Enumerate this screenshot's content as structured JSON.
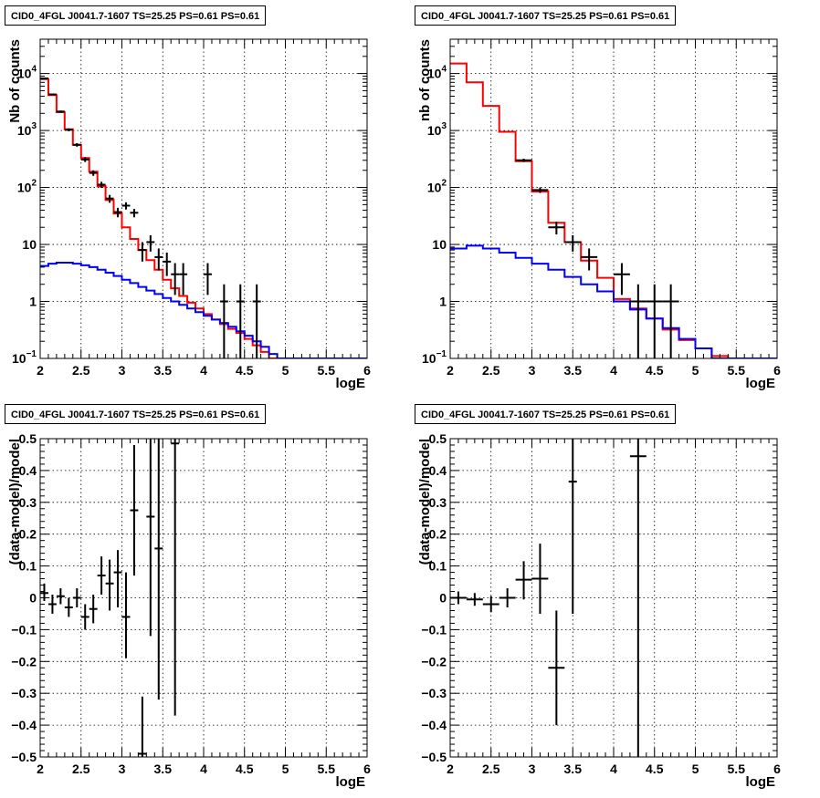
{
  "chart_data": [
    {
      "id": "tl",
      "type": "line",
      "title": "CID0_4FGL J0041.7-1607 TS=25.25 PS=0.61 PS=0.61",
      "xlabel": "logE",
      "ylabel": "Nb of counts",
      "xlim": [
        2,
        6
      ],
      "ylim": [
        0.1,
        40000
      ],
      "yscale": "log",
      "grid": true,
      "x_ticks": [
        "2",
        "2.5",
        "3",
        "3.5",
        "4",
        "4.5",
        "5",
        "5.5",
        "6"
      ],
      "y_ticks": [
        {
          "value": 0.1,
          "mant": "10",
          "exp": "−1"
        },
        {
          "value": 1,
          "mant": "1",
          "exp": ""
        },
        {
          "value": 10,
          "mant": "10",
          "exp": ""
        },
        {
          "value": 100,
          "mant": "10",
          "exp": "2"
        },
        {
          "value": 1000,
          "mant": "10",
          "exp": "3"
        },
        {
          "value": 10000,
          "mant": "10",
          "exp": "4"
        }
      ],
      "bin_edges": [
        2.0,
        2.1,
        2.2,
        2.3,
        2.4,
        2.5,
        2.6,
        2.7,
        2.8,
        2.9,
        3.0,
        3.1,
        3.2,
        3.3,
        3.4,
        3.5,
        3.6,
        3.7,
        3.8,
        3.9,
        4.0,
        4.1,
        4.2,
        4.3,
        4.4,
        4.5,
        4.6,
        4.7,
        4.8,
        4.9,
        5.0,
        5.1,
        5.2,
        5.3,
        5.4,
        5.5,
        5.6,
        5.7,
        5.8,
        5.9,
        6.0
      ],
      "series": [
        {
          "name": "",
          "color": "#ff0000",
          "kind": "step",
          "values": [
            8000,
            4200,
            2100,
            1050,
            560,
            330,
            190,
            105,
            60,
            35,
            20,
            12.5,
            8,
            5.3,
            3.6,
            2.4,
            1.7,
            1.25,
            0.95,
            0.75,
            0.6,
            0.48,
            0.4,
            0.33,
            0.28,
            0.22,
            0.17,
            0.13,
            0.1,
            0.09,
            0.09,
            0.09,
            0.09,
            0.09,
            0.09,
            0.09,
            0.09,
            0.09,
            0.09,
            0.09
          ]
        },
        {
          "name": "",
          "color": "#0000ff",
          "kind": "step",
          "values": [
            4.2,
            4.6,
            4.8,
            4.8,
            4.6,
            4.3,
            4.0,
            3.6,
            3.2,
            2.8,
            2.4,
            2.1,
            1.8,
            1.55,
            1.35,
            1.15,
            1.0,
            0.87,
            0.75,
            0.65,
            0.56,
            0.48,
            0.42,
            0.36,
            0.3,
            0.25,
            0.2,
            0.16,
            0.12,
            0.1,
            0.09,
            0.09,
            0.09,
            0.09,
            0.09,
            0.09,
            0.09,
            0.09,
            0.09,
            0.09
          ]
        },
        {
          "name": "",
          "color": "#000000",
          "kind": "points",
          "points": [
            {
              "x": 2.05,
              "xerr": 0.05,
              "y": 8200,
              "ylo": 8020,
              "yhi": 8380
            },
            {
              "x": 2.15,
              "xerr": 0.05,
              "y": 4300,
              "ylo": 4170,
              "yhi": 4430
            },
            {
              "x": 2.25,
              "xerr": 0.05,
              "y": 2150,
              "ylo": 2060,
              "yhi": 2240
            },
            {
              "x": 2.35,
              "xerr": 0.05,
              "y": 1030,
              "ylo": 970,
              "yhi": 1090
            },
            {
              "x": 2.45,
              "xerr": 0.05,
              "y": 560,
              "ylo": 520,
              "yhi": 600
            },
            {
              "x": 2.55,
              "xerr": 0.05,
              "y": 310,
              "ylo": 280,
              "yhi": 340
            },
            {
              "x": 2.65,
              "xerr": 0.05,
              "y": 180,
              "ylo": 160,
              "yhi": 200
            },
            {
              "x": 2.75,
              "xerr": 0.05,
              "y": 112,
              "ylo": 98,
              "yhi": 126
            },
            {
              "x": 2.85,
              "xerr": 0.05,
              "y": 64,
              "ylo": 54,
              "yhi": 74
            },
            {
              "x": 2.95,
              "xerr": 0.05,
              "y": 37,
              "ylo": 30,
              "yhi": 44
            },
            {
              "x": 3.05,
              "xerr": 0.05,
              "y": 48,
              "ylo": 41,
              "yhi": 55
            },
            {
              "x": 3.15,
              "xerr": 0.05,
              "y": 36,
              "ylo": 30,
              "yhi": 42
            },
            {
              "x": 3.25,
              "xerr": 0.05,
              "y": 8,
              "ylo": 5,
              "yhi": 11
            },
            {
              "x": 3.35,
              "xerr": 0.05,
              "y": 11,
              "ylo": 7.5,
              "yhi": 14.5
            },
            {
              "x": 3.45,
              "xerr": 0.05,
              "y": 6,
              "ylo": 3.5,
              "yhi": 8.5
            },
            {
              "x": 3.55,
              "xerr": 0.05,
              "y": 5,
              "ylo": 2.8,
              "yhi": 7.2
            },
            {
              "x": 3.65,
              "xerr": 0.05,
              "y": 3,
              "ylo": 1.3,
              "yhi": 4.7
            },
            {
              "x": 3.75,
              "xerr": 0.05,
              "y": 3,
              "ylo": 1.3,
              "yhi": 4.7
            },
            {
              "x": 4.05,
              "xerr": 0.05,
              "y": 3,
              "ylo": 1.3,
              "yhi": 4.7
            },
            {
              "x": 4.25,
              "xerr": 0.05,
              "y": 1,
              "ylo": 0.1,
              "yhi": 2
            },
            {
              "x": 4.45,
              "xerr": 0.05,
              "y": 1,
              "ylo": 0.1,
              "yhi": 2
            },
            {
              "x": 4.65,
              "xerr": 0.05,
              "y": 1,
              "ylo": 0.1,
              "yhi": 2
            }
          ]
        }
      ]
    },
    {
      "id": "tr",
      "type": "line",
      "title": "CID0_4FGL J0041.7-1607 TS=25.25 PS=0.61 PS=0.61",
      "xlabel": "logE",
      "ylabel": "nb of counts",
      "xlim": [
        2,
        6
      ],
      "ylim": [
        0.1,
        40000
      ],
      "yscale": "log",
      "grid": true,
      "x_ticks": [
        "2",
        "2.5",
        "3",
        "3.5",
        "4",
        "4.5",
        "5",
        "5.5",
        "6"
      ],
      "y_ticks": [
        {
          "value": 0.1,
          "mant": "10",
          "exp": "−1"
        },
        {
          "value": 1,
          "mant": "1",
          "exp": ""
        },
        {
          "value": 10,
          "mant": "10",
          "exp": ""
        },
        {
          "value": 100,
          "mant": "10",
          "exp": "2"
        },
        {
          "value": 1000,
          "mant": "10",
          "exp": "3"
        },
        {
          "value": 10000,
          "mant": "10",
          "exp": "4"
        }
      ],
      "bin_edges": [
        2.0,
        2.2,
        2.4,
        2.6,
        2.8,
        3.0,
        3.2,
        3.4,
        3.6,
        3.8,
        4.0,
        4.2,
        4.4,
        4.6,
        4.8,
        5.0,
        5.2,
        5.4,
        5.6,
        5.8,
        6.0
      ],
      "series": [
        {
          "name": "",
          "color": "#ff0000",
          "kind": "step",
          "values": [
            15000,
            7000,
            2700,
            950,
            290,
            85,
            24,
            11,
            5.2,
            2.6,
            1.1,
            0.75,
            0.5,
            0.32,
            0.21,
            0.15,
            0.11,
            0.09,
            0.09,
            0.09
          ]
        },
        {
          "name": "",
          "color": "#0000ff",
          "kind": "step",
          "values": [
            8.5,
            9.5,
            8.5,
            7.2,
            5.8,
            4.6,
            3.6,
            2.7,
            2.0,
            1.5,
            1.0,
            0.72,
            0.5,
            0.34,
            0.22,
            0.15,
            0.1,
            0.09,
            0.09,
            0.09
          ]
        },
        {
          "name": "",
          "color": "#000000",
          "kind": "points",
          "points": [
            {
              "x": 2.9,
              "xerr": 0.1,
              "y": 300,
              "ylo": 280,
              "yhi": 320
            },
            {
              "x": 3.1,
              "xerr": 0.1,
              "y": 90,
              "ylo": 80,
              "yhi": 100
            },
            {
              "x": 3.3,
              "xerr": 0.1,
              "y": 20,
              "ylo": 15,
              "yhi": 25
            },
            {
              "x": 3.5,
              "xerr": 0.1,
              "y": 11,
              "ylo": 7.5,
              "yhi": 14.5
            },
            {
              "x": 3.7,
              "xerr": 0.1,
              "y": 6,
              "ylo": 3.5,
              "yhi": 8.5
            },
            {
              "x": 4.1,
              "xerr": 0.1,
              "y": 3,
              "ylo": 1.3,
              "yhi": 4.7
            },
            {
              "x": 4.3,
              "xerr": 0.1,
              "y": 1,
              "ylo": 0.1,
              "yhi": 2
            },
            {
              "x": 4.5,
              "xerr": 0.1,
              "y": 1,
              "ylo": 0.1,
              "yhi": 2
            },
            {
              "x": 4.7,
              "xerr": 0.1,
              "y": 1,
              "ylo": 0.1,
              "yhi": 2
            }
          ]
        }
      ]
    },
    {
      "id": "bl",
      "type": "scatter",
      "title": "CID0_4FGL J0041.7-1607 TS=25.25 PS=0.61 PS=0.61",
      "xlabel": "logE",
      "ylabel": "(data-model)/model",
      "xlim": [
        2,
        6
      ],
      "ylim": [
        -0.5,
        0.5
      ],
      "yscale": "linear",
      "grid": true,
      "x_ticks": [
        "2",
        "2.5",
        "3",
        "3.5",
        "4",
        "4.5",
        "5",
        "5.5",
        "6"
      ],
      "y_ticks": [
        {
          "value": -0.5,
          "label": "−0.5"
        },
        {
          "value": -0.4,
          "label": "−0.4"
        },
        {
          "value": -0.3,
          "label": "−0.3"
        },
        {
          "value": -0.2,
          "label": "−0.2"
        },
        {
          "value": -0.1,
          "label": "−0.1"
        },
        {
          "value": 0,
          "label": "0"
        },
        {
          "value": 0.1,
          "label": "0.1"
        },
        {
          "value": 0.2,
          "label": "0.2"
        },
        {
          "value": 0.3,
          "label": "0.3"
        },
        {
          "value": 0.4,
          "label": "0.4"
        },
        {
          "value": 0.5,
          "label": "0.5"
        }
      ],
      "series": [
        {
          "name": "",
          "color": "#000000",
          "kind": "points",
          "points": [
            {
              "x": 2.05,
              "xerr": 0.05,
              "y": 0.015,
              "ylo": -0.01,
              "yhi": 0.045
            },
            {
              "x": 2.15,
              "xerr": 0.05,
              "y": -0.02,
              "ylo": -0.05,
              "yhi": 0.01
            },
            {
              "x": 2.25,
              "xerr": 0.05,
              "y": 0.005,
              "ylo": -0.02,
              "yhi": 0.03
            },
            {
              "x": 2.35,
              "xerr": 0.05,
              "y": -0.03,
              "ylo": -0.06,
              "yhi": 0.0
            },
            {
              "x": 2.45,
              "xerr": 0.05,
              "y": 0.0,
              "ylo": -0.03,
              "yhi": 0.03
            },
            {
              "x": 2.55,
              "xerr": 0.05,
              "y": -0.06,
              "ylo": -0.1,
              "yhi": -0.02
            },
            {
              "x": 2.65,
              "xerr": 0.05,
              "y": -0.035,
              "ylo": -0.08,
              "yhi": 0.01
            },
            {
              "x": 2.75,
              "xerr": 0.05,
              "y": 0.07,
              "ylo": 0.01,
              "yhi": 0.13
            },
            {
              "x": 2.85,
              "xerr": 0.05,
              "y": 0.045,
              "ylo": -0.04,
              "yhi": 0.12
            },
            {
              "x": 2.95,
              "xerr": 0.05,
              "y": 0.08,
              "ylo": -0.03,
              "yhi": 0.15
            },
            {
              "x": 3.05,
              "xerr": 0.05,
              "y": -0.06,
              "ylo": -0.19,
              "yhi": 0.08
            },
            {
              "x": 3.15,
              "xerr": 0.05,
              "y": 0.275,
              "ylo": 0.07,
              "yhi": 0.48
            },
            {
              "x": 3.25,
              "xerr": 0.05,
              "y": -0.49,
              "ylo": -0.5,
              "yhi": -0.31
            },
            {
              "x": 3.35,
              "xerr": 0.05,
              "y": 0.255,
              "ylo": -0.12,
              "yhi": 0.5
            },
            {
              "x": 3.45,
              "xerr": 0.05,
              "y": 0.155,
              "ylo": -0.32,
              "yhi": 0.5
            },
            {
              "x": 3.65,
              "xerr": 0.05,
              "y": 0.485,
              "ylo": -0.37,
              "yhi": 0.5
            }
          ]
        }
      ]
    },
    {
      "id": "br",
      "type": "scatter",
      "title": "CID0_4FGL J0041.7-1607 TS=25.25 PS=0.61 PS=0.61",
      "xlabel": "logE",
      "ylabel": "(data-model)/model",
      "xlim": [
        2,
        6
      ],
      "ylim": [
        -0.5,
        0.5
      ],
      "yscale": "linear",
      "grid": true,
      "x_ticks": [
        "2",
        "2.5",
        "3",
        "3.5",
        "4",
        "4.5",
        "5",
        "5.5",
        "6"
      ],
      "y_ticks": [
        {
          "value": -0.5,
          "label": "−0.5"
        },
        {
          "value": -0.4,
          "label": "−0.4"
        },
        {
          "value": -0.3,
          "label": "−0.3"
        },
        {
          "value": -0.2,
          "label": "−0.2"
        },
        {
          "value": -0.1,
          "label": "−0.1"
        },
        {
          "value": 0,
          "label": "0"
        },
        {
          "value": 0.1,
          "label": "0.1"
        },
        {
          "value": 0.2,
          "label": "0.2"
        },
        {
          "value": 0.3,
          "label": "0.3"
        },
        {
          "value": 0.4,
          "label": "0.4"
        },
        {
          "value": 0.5,
          "label": "0.5"
        }
      ],
      "series": [
        {
          "name": "",
          "color": "#000000",
          "kind": "points",
          "points": [
            {
              "x": 2.1,
              "xerr": 0.1,
              "y": 0.0,
              "ylo": -0.02,
              "yhi": 0.02
            },
            {
              "x": 2.3,
              "xerr": 0.1,
              "y": -0.005,
              "ylo": -0.025,
              "yhi": 0.015
            },
            {
              "x": 2.5,
              "xerr": 0.1,
              "y": -0.02,
              "ylo": -0.045,
              "yhi": 0.005
            },
            {
              "x": 2.7,
              "xerr": 0.1,
              "y": 0.0,
              "ylo": -0.03,
              "yhi": 0.03
            },
            {
              "x": 2.9,
              "xerr": 0.1,
              "y": 0.057,
              "ylo": -0.005,
              "yhi": 0.115
            },
            {
              "x": 3.1,
              "xerr": 0.1,
              "y": 0.06,
              "ylo": -0.05,
              "yhi": 0.17
            },
            {
              "x": 3.3,
              "xerr": 0.1,
              "y": -0.22,
              "ylo": -0.4,
              "yhi": -0.04
            },
            {
              "x": 3.5,
              "xerr": 0.05,
              "y": 0.365,
              "ylo": -0.05,
              "yhi": 0.5
            },
            {
              "x": 4.3,
              "xerr": 0.1,
              "y": 0.445,
              "ylo": -0.5,
              "yhi": 0.5
            }
          ]
        }
      ]
    }
  ]
}
